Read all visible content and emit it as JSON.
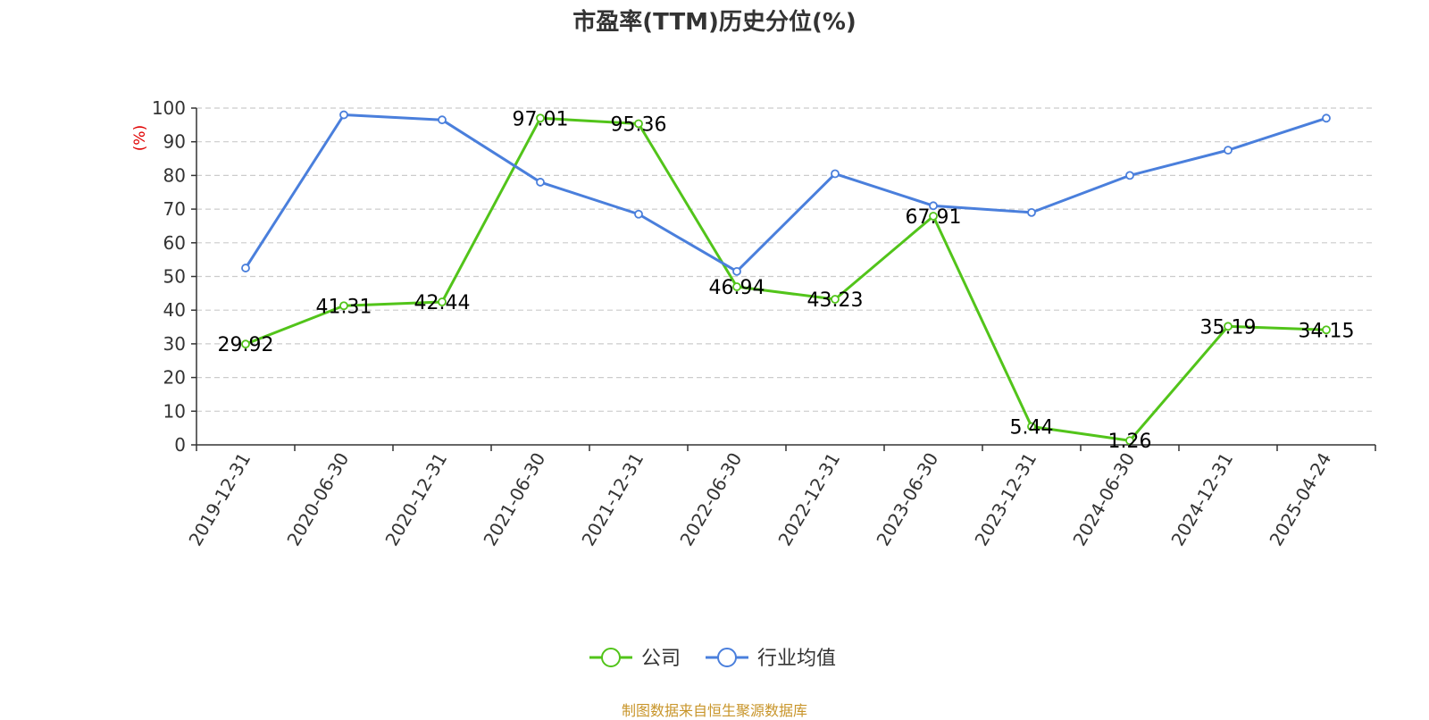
{
  "title": "市盈率(TTM)历史分位(%)",
  "source": "制图数据来自恒生聚源数据库",
  "chart_data": {
    "type": "line",
    "title": "市盈率(TTM)历史分位(%)",
    "ylabel": "(%)",
    "xlabel": "",
    "ylim": [
      0,
      100
    ],
    "yticks": [
      0,
      10,
      20,
      30,
      40,
      50,
      60,
      70,
      80,
      90,
      100
    ],
    "grid": true,
    "legend_position": "bottom",
    "categories": [
      "2019-12-31",
      "2020-06-30",
      "2020-12-31",
      "2021-06-30",
      "2021-12-31",
      "2022-06-30",
      "2022-12-31",
      "2023-06-30",
      "2023-12-31",
      "2024-06-30",
      "2024-12-31",
      "2025-04-24"
    ],
    "series": [
      {
        "name": "公司",
        "color": "#52c41a",
        "values": [
          29.92,
          41.31,
          42.44,
          97.01,
          95.36,
          46.94,
          43.23,
          67.91,
          5.44,
          1.26,
          35.19,
          34.15
        ],
        "labels": [
          "29.92",
          "41.31",
          "42.44",
          "97.01",
          "95.36",
          "46.94",
          "43.23",
          "67.91",
          "5.44",
          "1.26",
          "35.19",
          "34.15"
        ]
      },
      {
        "name": "行业均值",
        "color": "#4a7fdc",
        "values": [
          52.5,
          98.0,
          96.5,
          78.0,
          68.5,
          51.5,
          80.5,
          71.0,
          69.0,
          80.0,
          87.5,
          97.0
        ]
      }
    ]
  }
}
